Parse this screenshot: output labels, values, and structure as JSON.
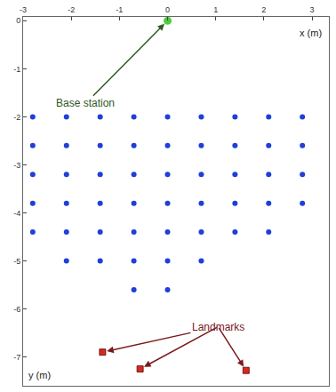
{
  "chart_data": {
    "type": "scatter",
    "x_label": "x (m)",
    "y_label": "y (m)",
    "xlim": [
      -3,
      3.35
    ],
    "ylim": [
      -7.6,
      0.08
    ],
    "xticks": [
      -3,
      -2,
      -1,
      0,
      1,
      2,
      3
    ],
    "yticks": [
      0,
      -1,
      -2,
      -3,
      -4,
      -5,
      -6,
      -7
    ],
    "grid": false,
    "series": [
      {
        "color": "#1f3fd8",
        "marker": "circle",
        "x": [
          -2.8,
          -2.1,
          -1.4,
          -0.7,
          0,
          0.7,
          1.4,
          2.1,
          2.8,
          -2.8,
          -2.1,
          -1.4,
          -0.7,
          0,
          0.7,
          1.4,
          2.1,
          2.8,
          -2.8,
          -2.1,
          -1.4,
          -0.7,
          0,
          0.7,
          1.4,
          2.1,
          2.8,
          -2.8,
          -2.1,
          -1.4,
          -0.7,
          0,
          0.7,
          1.4,
          2.1,
          2.8,
          -2.8,
          -2.1,
          -1.4,
          -0.7,
          0,
          0.7,
          1.4,
          2.1,
          -2.1,
          -1.4,
          -0.7,
          0,
          0.7,
          -0.7,
          0
        ],
        "y": [
          -2,
          -2,
          -2,
          -2,
          -2,
          -2,
          -2,
          -2,
          -2,
          -2.6,
          -2.6,
          -2.6,
          -2.6,
          -2.6,
          -2.6,
          -2.6,
          -2.6,
          -2.6,
          -3.2,
          -3.2,
          -3.2,
          -3.2,
          -3.2,
          -3.2,
          -3.2,
          -3.2,
          -3.2,
          -3.8,
          -3.8,
          -3.8,
          -3.8,
          -3.8,
          -3.8,
          -3.8,
          -3.8,
          -3.8,
          -4.4,
          -4.4,
          -4.4,
          -4.4,
          -4.4,
          -4.4,
          -4.4,
          -4.4,
          -5,
          -5,
          -5,
          -5,
          -5,
          -5.6,
          -5.6
        ]
      },
      {
        "color": "#4ccc3c",
        "marker": "circle",
        "x": [
          0
        ],
        "y": [
          0
        ]
      },
      {
        "color": "#d42a20",
        "marker": "square",
        "x": [
          -1.35,
          -0.57,
          1.63
        ],
        "y": [
          -6.9,
          -7.25,
          -7.28
        ]
      }
    ],
    "annotations": [
      {
        "text": "Base station",
        "x": -1.7,
        "y": -1.72,
        "color": "#2f5a1e",
        "points": [
          [
            0,
            0
          ]
        ]
      },
      {
        "text": "Landmarks",
        "x": 1.05,
        "y": -6.37,
        "color": "#7a1a1a",
        "points": [
          [
            -1.35,
            -6.9
          ],
          [
            -0.57,
            -7.25
          ],
          [
            1.63,
            -7.28
          ]
        ]
      }
    ]
  }
}
